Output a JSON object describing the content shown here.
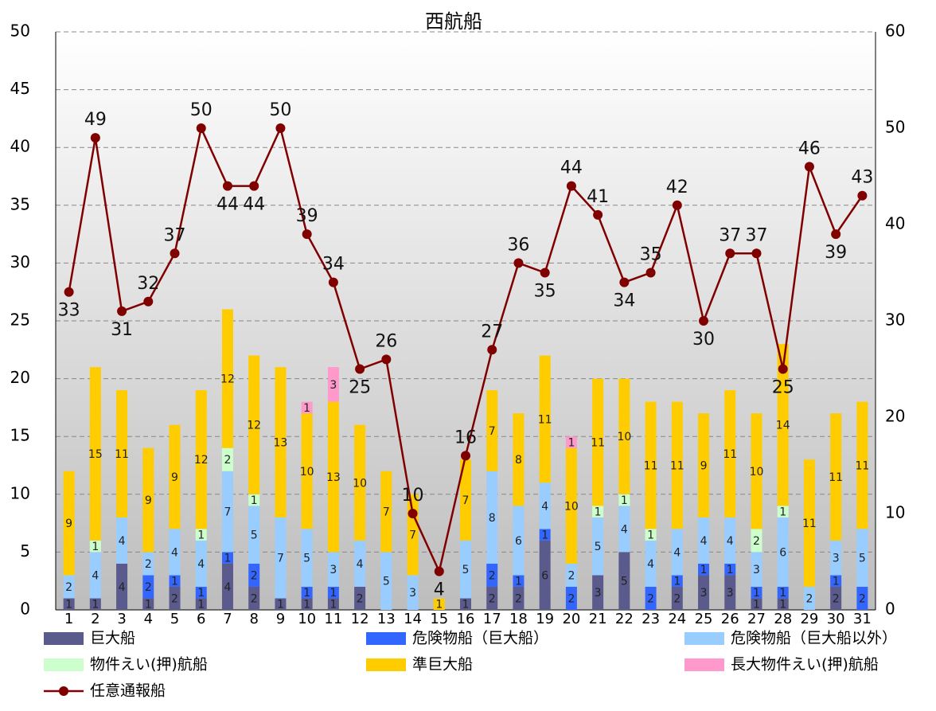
{
  "chart_data": {
    "type": "bar",
    "title": "西航船",
    "categories": [
      "1",
      "2",
      "3",
      "4",
      "5",
      "6",
      "7",
      "8",
      "9",
      "10",
      "11",
      "12",
      "13",
      "14",
      "15",
      "16",
      "17",
      "18",
      "19",
      "20",
      "21",
      "22",
      "23",
      "24",
      "25",
      "26",
      "27",
      "28",
      "29",
      "30",
      "31"
    ],
    "series": [
      {
        "name": "巨大船",
        "color": "#5a5a8c",
        "values": [
          1,
          1,
          4,
          1,
          2,
          1,
          4,
          2,
          1,
          1,
          1,
          2,
          0,
          0,
          0,
          1,
          2,
          2,
          6,
          0,
          3,
          5,
          0,
          2,
          3,
          3,
          1,
          1,
          0,
          2,
          0
        ]
      },
      {
        "name": "危険物船（巨大船）",
        "color": "#3366ff",
        "values": [
          0,
          0,
          0,
          2,
          1,
          1,
          1,
          2,
          0,
          1,
          1,
          0,
          0,
          0,
          0,
          0,
          2,
          1,
          1,
          2,
          0,
          0,
          2,
          1,
          1,
          1,
          1,
          1,
          0,
          1,
          2
        ]
      },
      {
        "name": "危険物船（巨大船以外）",
        "color": "#99ccff",
        "values": [
          2,
          4,
          4,
          2,
          4,
          4,
          7,
          5,
          7,
          5,
          3,
          4,
          5,
          3,
          0,
          5,
          8,
          6,
          4,
          2,
          5,
          4,
          4,
          4,
          4,
          4,
          3,
          6,
          2,
          3,
          5
        ]
      },
      {
        "name": "物件えい(押)航船",
        "color": "#ccffcc",
        "values": [
          0,
          1,
          0,
          0,
          0,
          1,
          2,
          1,
          0,
          0,
          0,
          0,
          0,
          0,
          0,
          0,
          0,
          0,
          0,
          0,
          1,
          1,
          1,
          0,
          0,
          0,
          2,
          1,
          0,
          0,
          0
        ]
      },
      {
        "name": "準巨大船",
        "color": "#ffcc00",
        "values": [
          9,
          15,
          11,
          9,
          9,
          12,
          12,
          12,
          13,
          10,
          13,
          10,
          7,
          7,
          1,
          7,
          7,
          8,
          11,
          10,
          11,
          10,
          11,
          11,
          9,
          11,
          10,
          14,
          11,
          11,
          11
        ]
      },
      {
        "name": "長大物件えい(押)航船",
        "color": "#ff99cc",
        "values": [
          0,
          0,
          0,
          0,
          0,
          0,
          0,
          0,
          0,
          1,
          3,
          0,
          0,
          0,
          0,
          0,
          0,
          0,
          0,
          1,
          0,
          0,
          0,
          0,
          0,
          0,
          0,
          0,
          0,
          0,
          0
        ]
      },
      {
        "name": "任意通報船",
        "color": "#800000",
        "axis": "y2",
        "type": "line",
        "values": [
          33,
          49,
          31,
          32,
          37,
          50,
          44,
          44,
          50,
          39,
          34,
          25,
          26,
          10,
          4,
          16,
          27,
          36,
          35,
          44,
          41,
          34,
          35,
          42,
          30,
          37,
          37,
          25,
          46,
          39,
          43
        ]
      }
    ],
    "ylim": [
      0,
      50
    ],
    "yticks": [
      0,
      5,
      10,
      15,
      20,
      25,
      30,
      35,
      40,
      45,
      50
    ],
    "y2lim": [
      0,
      60
    ],
    "y2ticks": [
      0,
      10,
      20,
      30,
      40,
      50,
      60
    ],
    "grid": true
  }
}
